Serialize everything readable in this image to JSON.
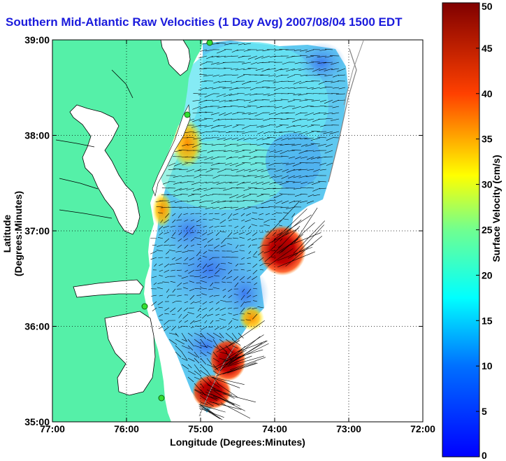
{
  "title": "Southern Mid-Atlantic Raw Velocities (1 Day Avg) 2007/08/04 1500 EDT",
  "axes": {
    "xlabel": "Longitude (Degrees:Minutes)",
    "ylabel": "Latitude (Degrees:Minutes)",
    "x_ticks": [
      "77:00",
      "76:00",
      "75:00",
      "74:00",
      "73:00",
      "72:00"
    ],
    "y_ticks": [
      "39:00",
      "38:00",
      "37:00",
      "36:00",
      "35:00"
    ],
    "grid": "dotted"
  },
  "colorbar": {
    "label": "Surface Velocity (cm/s)",
    "ticks": [
      "50",
      "45",
      "40",
      "35",
      "30",
      "25",
      "20",
      "15",
      "10",
      "5",
      "0"
    ],
    "range": [
      0,
      50
    ],
    "colormap": "jet"
  },
  "colors": {
    "land": "#55f0a8",
    "title": "#1a1adc",
    "station_marker": "#33e033"
  },
  "chart_data": {
    "type": "heatmap",
    "region": "Southern Mid-Atlantic Bight",
    "lon_range": [
      -77,
      -72
    ],
    "lat_range": [
      35,
      39
    ],
    "hotspots": [
      {
        "lon": -73.9,
        "lat": 36.8,
        "speed_cm_s": 50
      },
      {
        "lon": -74.65,
        "lat": 35.5,
        "speed_cm_s": 48
      },
      {
        "lon": -74.85,
        "lat": 35.2,
        "speed_cm_s": 46
      },
      {
        "lon": -75.2,
        "lat": 37.95,
        "speed_cm_s": 35
      },
      {
        "lon": -75.55,
        "lat": 37.2,
        "speed_cm_s": 33
      },
      {
        "lon": -74.3,
        "lat": 36.3,
        "speed_cm_s": 36
      }
    ],
    "stations": [
      {
        "lon": -74.85,
        "lat": 38.95
      },
      {
        "lon": -75.15,
        "lat": 38.2
      },
      {
        "lon": -75.75,
        "lat": 36.2
      },
      {
        "lon": -75.5,
        "lat": 35.25
      }
    ]
  }
}
